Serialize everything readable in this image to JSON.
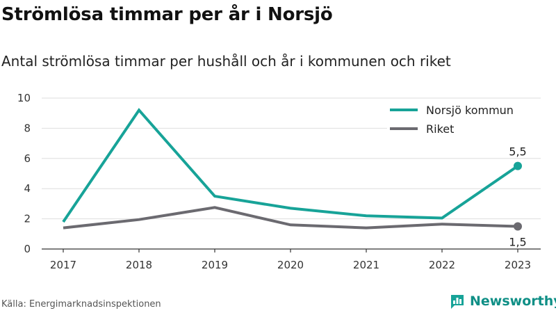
{
  "title": "Strömlösa timmar per år i Norsjö",
  "subtitle": "Antal strömlösa timmar per hushåll och år i kommunen och riket",
  "source": "Källa: Energimarknadsinspektionen",
  "brand": {
    "name": "Newsworthy",
    "icon": "newsworthy-logo-icon",
    "color": "#17a398"
  },
  "chart_data": {
    "type": "line",
    "title": "Strömlösa timmar per år i Norsjö",
    "subtitle": "Antal strömlösa timmar per hushåll och år i kommunen och riket",
    "xlabel": "",
    "ylabel": "",
    "x": [
      "2017",
      "2018",
      "2019",
      "2020",
      "2021",
      "2022",
      "2023"
    ],
    "ylim": [
      0,
      10
    ],
    "yticks": [
      0,
      2,
      4,
      6,
      8,
      10
    ],
    "ytick_labels": [
      "0",
      "2",
      "4",
      "6",
      "8",
      "10"
    ],
    "grid": "horizontal",
    "legend": "top-right",
    "series": [
      {
        "name": "Norsjö kommun",
        "color": "#17a398",
        "values": [
          1.8,
          9.2,
          3.5,
          2.7,
          2.2,
          2.05,
          5.5
        ]
      },
      {
        "name": "Riket",
        "color": "#6b6a70",
        "values": [
          1.4,
          1.95,
          2.75,
          1.6,
          1.4,
          1.65,
          1.5
        ]
      }
    ],
    "annotations": [
      {
        "series": "Norsjö kommun",
        "x": "2023",
        "text": "5,5",
        "position": "above"
      },
      {
        "series": "Riket",
        "x": "2023",
        "text": "1,5",
        "position": "below"
      }
    ]
  }
}
